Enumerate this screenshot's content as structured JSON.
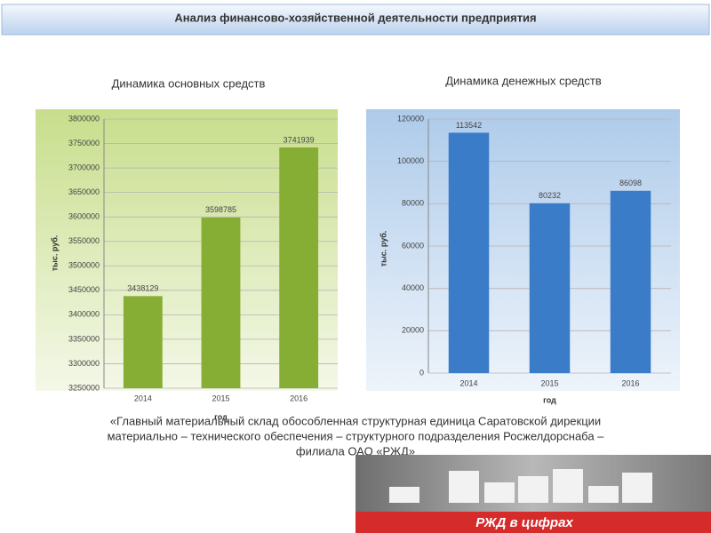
{
  "header": {
    "title": "Анализ финансово-хозяйственной деятельности предприятия"
  },
  "chart_data": [
    {
      "type": "bar",
      "title": "Динамика основных средств",
      "y_label": "тыс. руб.",
      "x_label": "год",
      "categories": [
        "2014",
        "2015",
        "2016"
      ],
      "values": [
        3438129,
        3598785,
        3741939
      ],
      "color": "#86ad34",
      "ylim": [
        3250000,
        3800000
      ],
      "yticks": [
        3250000,
        3300000,
        3350000,
        3400000,
        3450000,
        3500000,
        3550000,
        3600000,
        3650000,
        3700000,
        3750000,
        3800000
      ],
      "grid": true
    },
    {
      "type": "bar",
      "title": "Динамика денежных средств",
      "y_label": "тыс. руб.",
      "x_label": "год",
      "categories": [
        "2014",
        "2015",
        "2016"
      ],
      "values": [
        113542,
        80232,
        86098
      ],
      "color": "#3b7cc9",
      "ylim": [
        0,
        120000
      ],
      "yticks": [
        0,
        20000,
        40000,
        60000,
        80000,
        100000,
        120000
      ],
      "grid": true
    }
  ],
  "caption": {
    "lines": [
      "«Главный материальный склад обособленная структурная единица Саратовской дирекции",
      "материально – технического обеспечения – структурного подразделения Росжелдорснаба –",
      "филиала ОАО «РЖД»"
    ]
  },
  "banner": {
    "text": "РЖД в цифрах"
  }
}
